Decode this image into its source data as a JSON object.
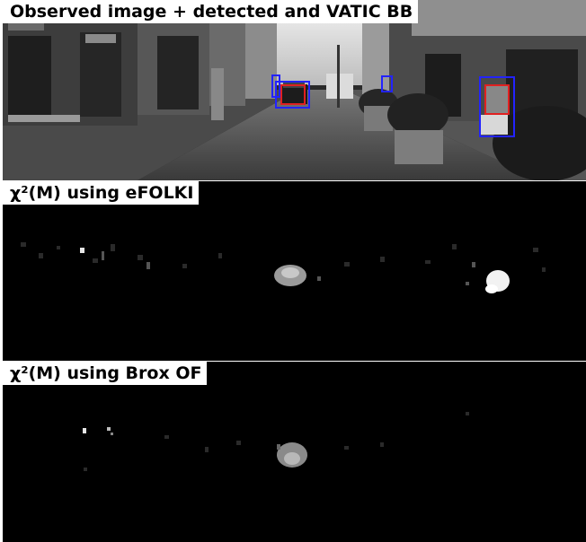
{
  "panels": [
    {
      "title": "Observed image + detected and VATIC BB"
    },
    {
      "title": "χ²(M) using eFOLKI"
    },
    {
      "title": "χ²(M) using Brox OF"
    }
  ],
  "colors": {
    "detected_box": "#2323ff",
    "vatic_box": "#e02020",
    "label_bg": "#ffffff",
    "panel_bg": "#000000"
  }
}
